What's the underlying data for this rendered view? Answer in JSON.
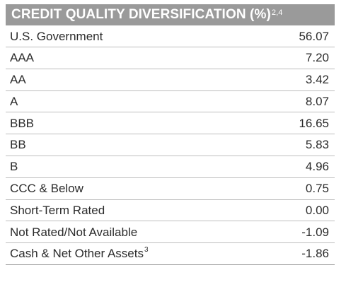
{
  "table": {
    "title": "CREDIT QUALITY DIVERSIFICATION (%)",
    "title_footnote": "2,4",
    "rows": [
      {
        "label": "U.S. Government",
        "footnote": "",
        "value": "56.07"
      },
      {
        "label": "AAA",
        "footnote": "",
        "value": "7.20"
      },
      {
        "label": "AA",
        "footnote": "",
        "value": "3.42"
      },
      {
        "label": "A",
        "footnote": "",
        "value": "8.07"
      },
      {
        "label": "BBB",
        "footnote": "",
        "value": "16.65"
      },
      {
        "label": "BB",
        "footnote": "",
        "value": "5.83"
      },
      {
        "label": "B",
        "footnote": "",
        "value": "4.96"
      },
      {
        "label": "CCC & Below",
        "footnote": "",
        "value": "0.75"
      },
      {
        "label": "Short-Term Rated",
        "footnote": "",
        "value": "0.00"
      },
      {
        "label": "Not Rated/Not Available",
        "footnote": "",
        "value": "-1.09"
      },
      {
        "label": "Cash & Net Other Assets",
        "footnote": "3",
        "value": "-1.86"
      }
    ]
  },
  "colors": {
    "header_bg": "#9a9a9a",
    "header_text": "#ffffff",
    "row_text": "#2b2b2b",
    "divider": "#bdbdbd"
  }
}
